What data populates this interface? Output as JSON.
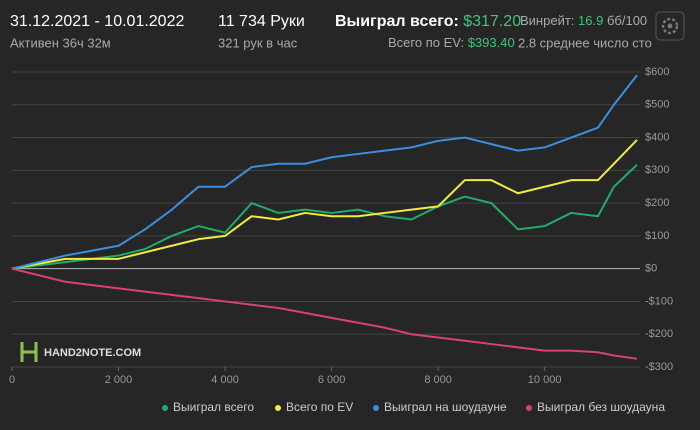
{
  "header": {
    "dates": "31.12.2021 - 10.01.2022",
    "active": "Активен 36ч 32м",
    "hands": "11 734 Руки",
    "hands_per_hour": "321 рук в час",
    "won_label": "Выиграл всего:",
    "won_value": "$317.20",
    "ev_label": "Всего по EV:",
    "ev_value": "$393.40",
    "winrate_label": "Винрейт:",
    "winrate_value": "16.9",
    "winrate_unit": "бб/100",
    "tables": "2.8 среднее число сто",
    "logo": "HAND2NOTE.COM"
  },
  "chart_data": {
    "type": "line",
    "x": [
      0,
      1000,
      2000,
      2500,
      3000,
      3500,
      4000,
      4500,
      5000,
      5500,
      6000,
      6500,
      7000,
      7500,
      8000,
      8500,
      9000,
      9500,
      10000,
      10500,
      11000,
      11300,
      11734
    ],
    "series": [
      {
        "name": "Выиграл всего",
        "color": "#1fae6a",
        "values": [
          0,
          20,
          40,
          60,
          100,
          130,
          110,
          200,
          170,
          180,
          170,
          180,
          160,
          150,
          190,
          220,
          200,
          120,
          130,
          170,
          160,
          250,
          317
        ]
      },
      {
        "name": "Всего по EV",
        "color": "#f2ec3c",
        "values": [
          0,
          30,
          30,
          50,
          70,
          90,
          100,
          160,
          150,
          170,
          160,
          160,
          170,
          180,
          190,
          270,
          270,
          230,
          250,
          270,
          270,
          320,
          393
        ]
      },
      {
        "name": "Выиграл на шоудауне",
        "color": "#3a8fe0",
        "values": [
          0,
          40,
          70,
          120,
          180,
          250,
          250,
          310,
          320,
          320,
          340,
          350,
          360,
          370,
          390,
          400,
          380,
          360,
          370,
          400,
          430,
          500,
          590
        ]
      },
      {
        "name": "Выиграл без шоудауна",
        "color": "#d8436a",
        "values": [
          0,
          -40,
          -60,
          -70,
          -80,
          -90,
          -100,
          -110,
          -120,
          -135,
          -150,
          -165,
          -180,
          -200,
          -210,
          -220,
          -230,
          -240,
          -250,
          -250,
          -255,
          -265,
          -275
        ]
      }
    ],
    "xlim": [
      0,
      11734
    ],
    "xticks": [
      0,
      {
        "value": 2000,
        "label": "2 000"
      },
      {
        "value": 4000,
        "label": "4 000"
      },
      {
        "value": 6000,
        "label": "6 000"
      },
      {
        "value": 8000,
        "label": "8 000"
      },
      {
        "value": 10000,
        "label": "10 000"
      }
    ],
    "ylim": [
      -300,
      600
    ],
    "yticks": [
      {
        "value": -300,
        "label": "-$300"
      },
      {
        "value": -200,
        "label": "-$200"
      },
      {
        "value": -100,
        "label": "-$100"
      },
      {
        "value": 0,
        "label": "$0"
      },
      {
        "value": 100,
        "label": "$100"
      },
      {
        "value": 200,
        "label": "$200"
      },
      {
        "value": 300,
        "label": "$300"
      },
      {
        "value": 400,
        "label": "$400"
      },
      {
        "value": 500,
        "label": "$500"
      },
      {
        "value": 600,
        "label": "$600"
      }
    ],
    "grid": true
  }
}
